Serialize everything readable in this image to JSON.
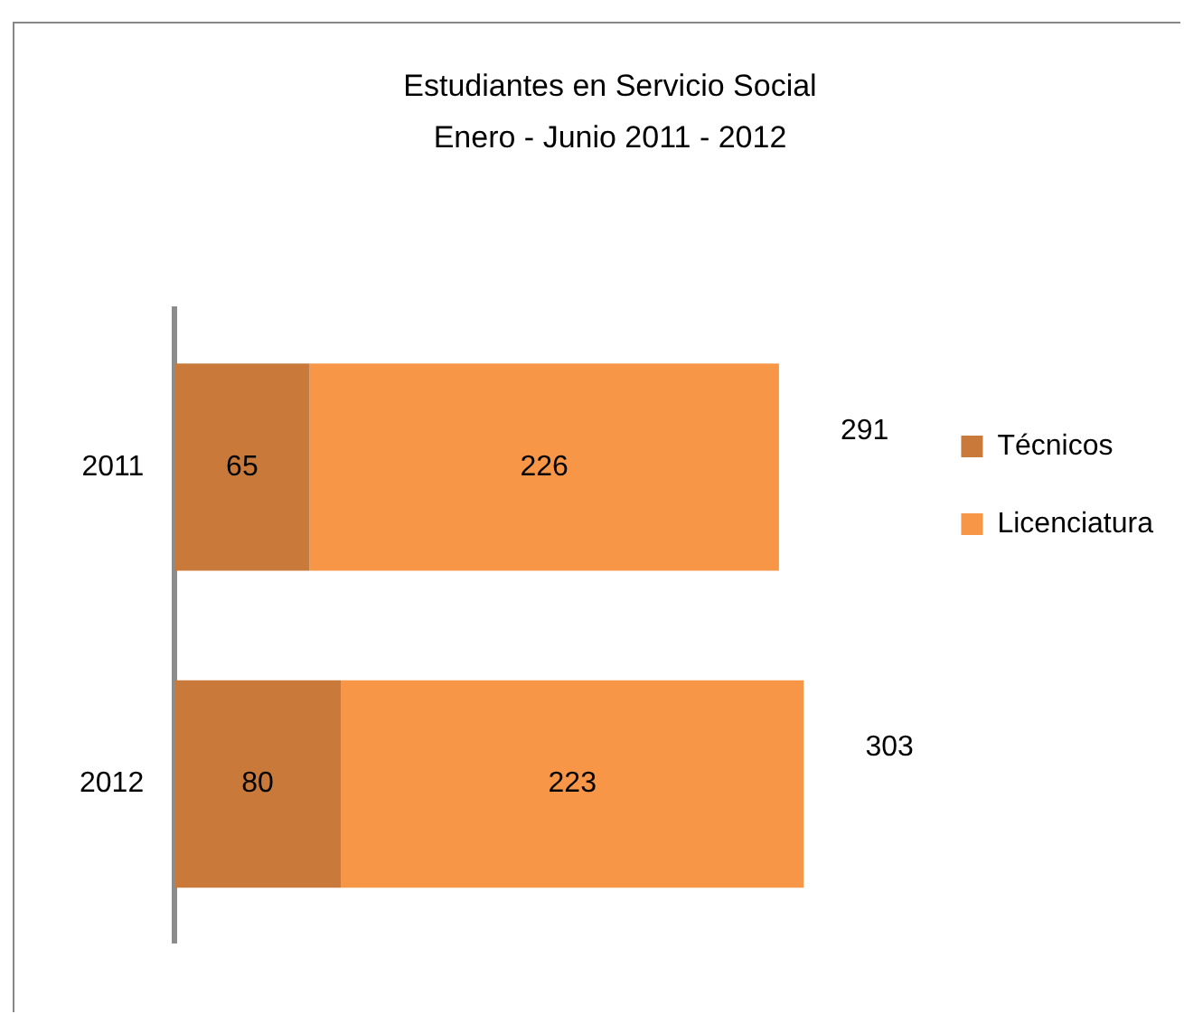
{
  "chart_data": {
    "type": "bar",
    "orientation": "horizontal",
    "stacked": true,
    "title": "Estudiantes en Servicio Social",
    "subtitle": "Enero - Junio 2011 - 2012",
    "categories": [
      "2011",
      "2012"
    ],
    "series": [
      {
        "name": "Técnicos",
        "color": "#c97a3a",
        "values": [
          65,
          80
        ]
      },
      {
        "name": "Licenciatura",
        "color": "#f79646",
        "values": [
          226,
          223
        ]
      }
    ],
    "data_labels": true,
    "totals": [
      "291",
      "303"
    ],
    "legend": "right",
    "tick_labels": "y"
  }
}
